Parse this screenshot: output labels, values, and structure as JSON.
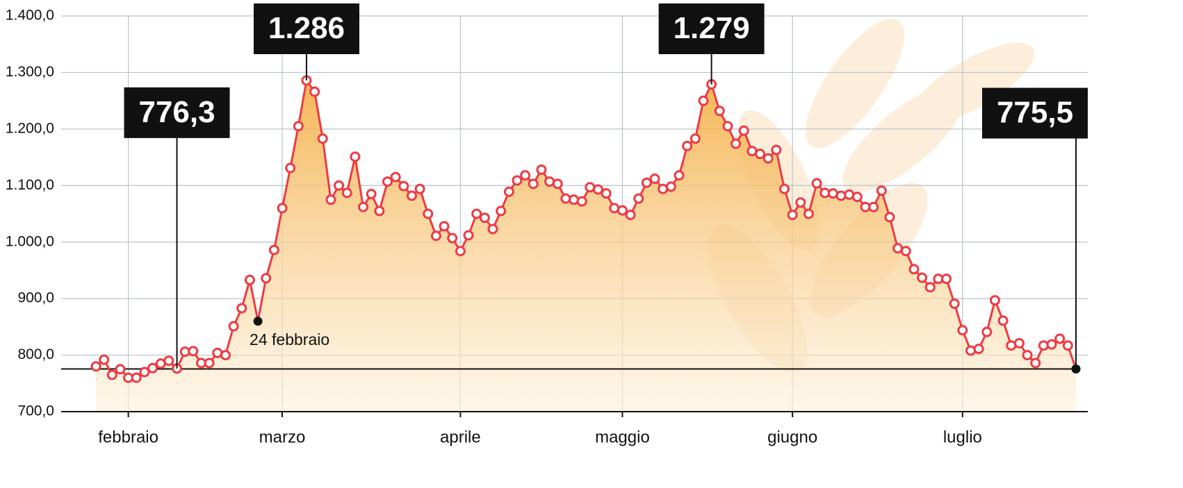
{
  "chart_data": {
    "type": "line",
    "categories": [
      null,
      null,
      null,
      null,
      "febbraio",
      null,
      null,
      null,
      null,
      null,
      null,
      null,
      null,
      null,
      null,
      null,
      null,
      null,
      null,
      null,
      null,
      null,
      null,
      "marzo",
      null,
      null,
      null,
      null,
      null,
      null,
      null,
      null,
      null,
      null,
      null,
      null,
      null,
      null,
      null,
      null,
      null,
      null,
      null,
      null,
      null,
      "aprile",
      null,
      null,
      null,
      null,
      null,
      null,
      null,
      null,
      null,
      null,
      null,
      null,
      null,
      null,
      null,
      null,
      null,
      null,
      null,
      "maggio",
      null,
      null,
      null,
      null,
      null,
      null,
      null,
      null,
      null,
      null,
      null,
      null,
      null,
      null,
      null,
      null,
      null,
      null,
      null,
      null,
      "giugno",
      null,
      null,
      null,
      null,
      null,
      null,
      null,
      null,
      null,
      null,
      null,
      null,
      null,
      null,
      null,
      null,
      null,
      null,
      null,
      null,
      "luglio",
      null,
      null,
      null,
      null,
      null,
      null,
      null,
      null,
      null,
      null,
      null,
      null,
      null,
      null
    ],
    "values": [
      780,
      792,
      765,
      775,
      760,
      760,
      770,
      777,
      785,
      790,
      776.3,
      806,
      807,
      786,
      786,
      804,
      800,
      851,
      883,
      933,
      860,
      936,
      986,
      1060,
      1131,
      1205,
      1286,
      1266,
      1183,
      1075,
      1100,
      1087,
      1151,
      1062,
      1085,
      1055,
      1107,
      1115,
      1099,
      1082,
      1094,
      1050,
      1011,
      1028,
      1007,
      984,
      1012,
      1050,
      1043,
      1023,
      1055,
      1089,
      1109,
      1118,
      1103,
      1128,
      1107,
      1103,
      1077,
      1075,
      1072,
      1097,
      1093,
      1086,
      1060,
      1056,
      1048,
      1077,
      1105,
      1112,
      1094,
      1098,
      1118,
      1170,
      1183,
      1250,
      1279,
      1232,
      1205,
      1174,
      1197,
      1161,
      1156,
      1148,
      1163,
      1094,
      1048,
      1070,
      1050,
      1104,
      1087,
      1086,
      1082,
      1084,
      1080,
      1062,
      1062,
      1091,
      1044,
      989,
      984,
      952,
      937,
      920,
      935,
      935,
      891,
      844,
      808,
      811,
      841,
      897,
      861,
      817,
      821,
      800,
      786,
      817,
      819,
      829,
      817,
      775.5
    ],
    "value_labels": [
      null,
      null,
      null,
      null,
      null,
      null,
      null,
      null,
      null,
      null,
      "776,3",
      null,
      null,
      null,
      null,
      null,
      null,
      null,
      null,
      null,
      null,
      null,
      null,
      null,
      null,
      null,
      "1.286",
      null,
      null,
      null,
      null,
      null,
      null,
      null,
      null,
      null,
      null,
      null,
      null,
      null,
      null,
      null,
      null,
      null,
      null,
      null,
      null,
      null,
      null,
      null,
      null,
      null,
      null,
      null,
      null,
      null,
      null,
      null,
      null,
      null,
      null,
      null,
      null,
      null,
      null,
      null,
      null,
      null,
      null,
      null,
      null,
      null,
      null,
      null,
      null,
      null,
      "1.279",
      null,
      null,
      null,
      null,
      null,
      null,
      null,
      null,
      null,
      null,
      null,
      null,
      null,
      null,
      null,
      null,
      null,
      null,
      null,
      null,
      null,
      null,
      null,
      null,
      null,
      null,
      null,
      null,
      null,
      null,
      null,
      null,
      null,
      null,
      null,
      null,
      null,
      null,
      null,
      null,
      null,
      null,
      null,
      null,
      "775,5"
    ],
    "annotations": [
      {
        "text": "24 febbraio",
        "x": 20
      }
    ],
    "color": "#ee3a42",
    "ylim": [
      700,
      1400
    ],
    "yticks": [
      {
        "value": 700,
        "label": "700,0"
      },
      {
        "value": 800,
        "label": "800,0"
      },
      {
        "value": 900,
        "label": "900,0"
      },
      {
        "value": 1000,
        "label": "1.000,0"
      },
      {
        "value": 1100,
        "label": "1.100,0"
      },
      {
        "value": 1200,
        "label": "1.200,0"
      },
      {
        "value": 1300,
        "label": "1.300,0"
      },
      {
        "value": 1400,
        "label": "1.400,0"
      }
    ],
    "grid": true
  }
}
